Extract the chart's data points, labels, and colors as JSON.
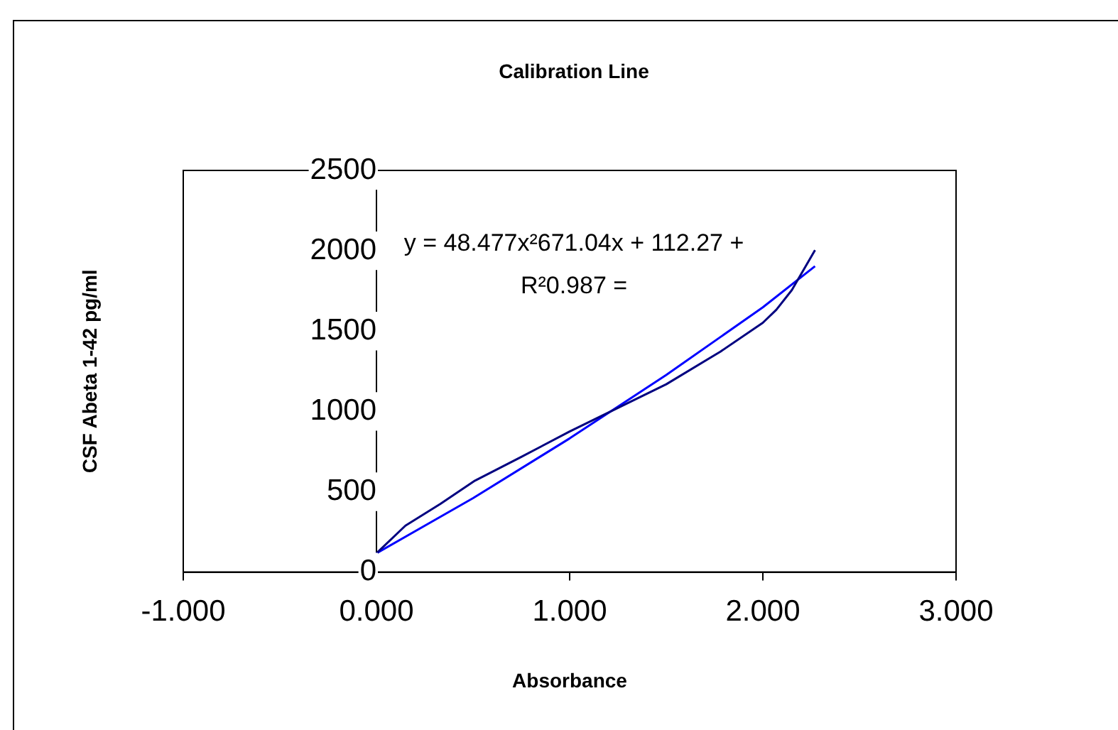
{
  "chart_data": {
    "type": "line",
    "title": "Calibration Line",
    "xlabel": "Absorbance",
    "ylabel": "CSF Abeta 1-42 pg/ml",
    "annotations": [
      "y = 48.477x²671.04x + 112.27 +",
      "R²0.987 ="
    ],
    "xlim": [
      -1,
      3
    ],
    "xticks": [
      {
        "value": -1,
        "label": "-1.000"
      },
      {
        "value": 0,
        "label": "0.000"
      },
      {
        "value": 1,
        "label": "1.000"
      },
      {
        "value": 2,
        "label": "2.000"
      },
      {
        "value": 3,
        "label": "3.000"
      }
    ],
    "ylim": [
      0,
      2500
    ],
    "yticks": [
      0,
      500,
      1000,
      1500,
      2000,
      2500
    ],
    "grid": false,
    "legend": false,
    "marker": "none",
    "line_style": "solid",
    "series": [
      {
        "color": "#000080",
        "x": [
          0,
          0.15,
          0.33,
          0.51,
          0.75,
          1.0,
          1.5,
          1.78,
          2.0,
          2.07,
          2.15,
          2.27
        ],
        "values": [
          117,
          289,
          424,
          569,
          717,
          875,
          1169,
          1372,
          1552,
          1633,
          1755,
          2004
        ]
      },
      {
        "color": "#0000ff",
        "x": [
          0,
          0.5,
          1.0,
          1.5,
          2.0,
          2.27
        ],
        "values": [
          117,
          460,
          832,
          1227,
          1648,
          1904
        ]
      }
    ]
  }
}
